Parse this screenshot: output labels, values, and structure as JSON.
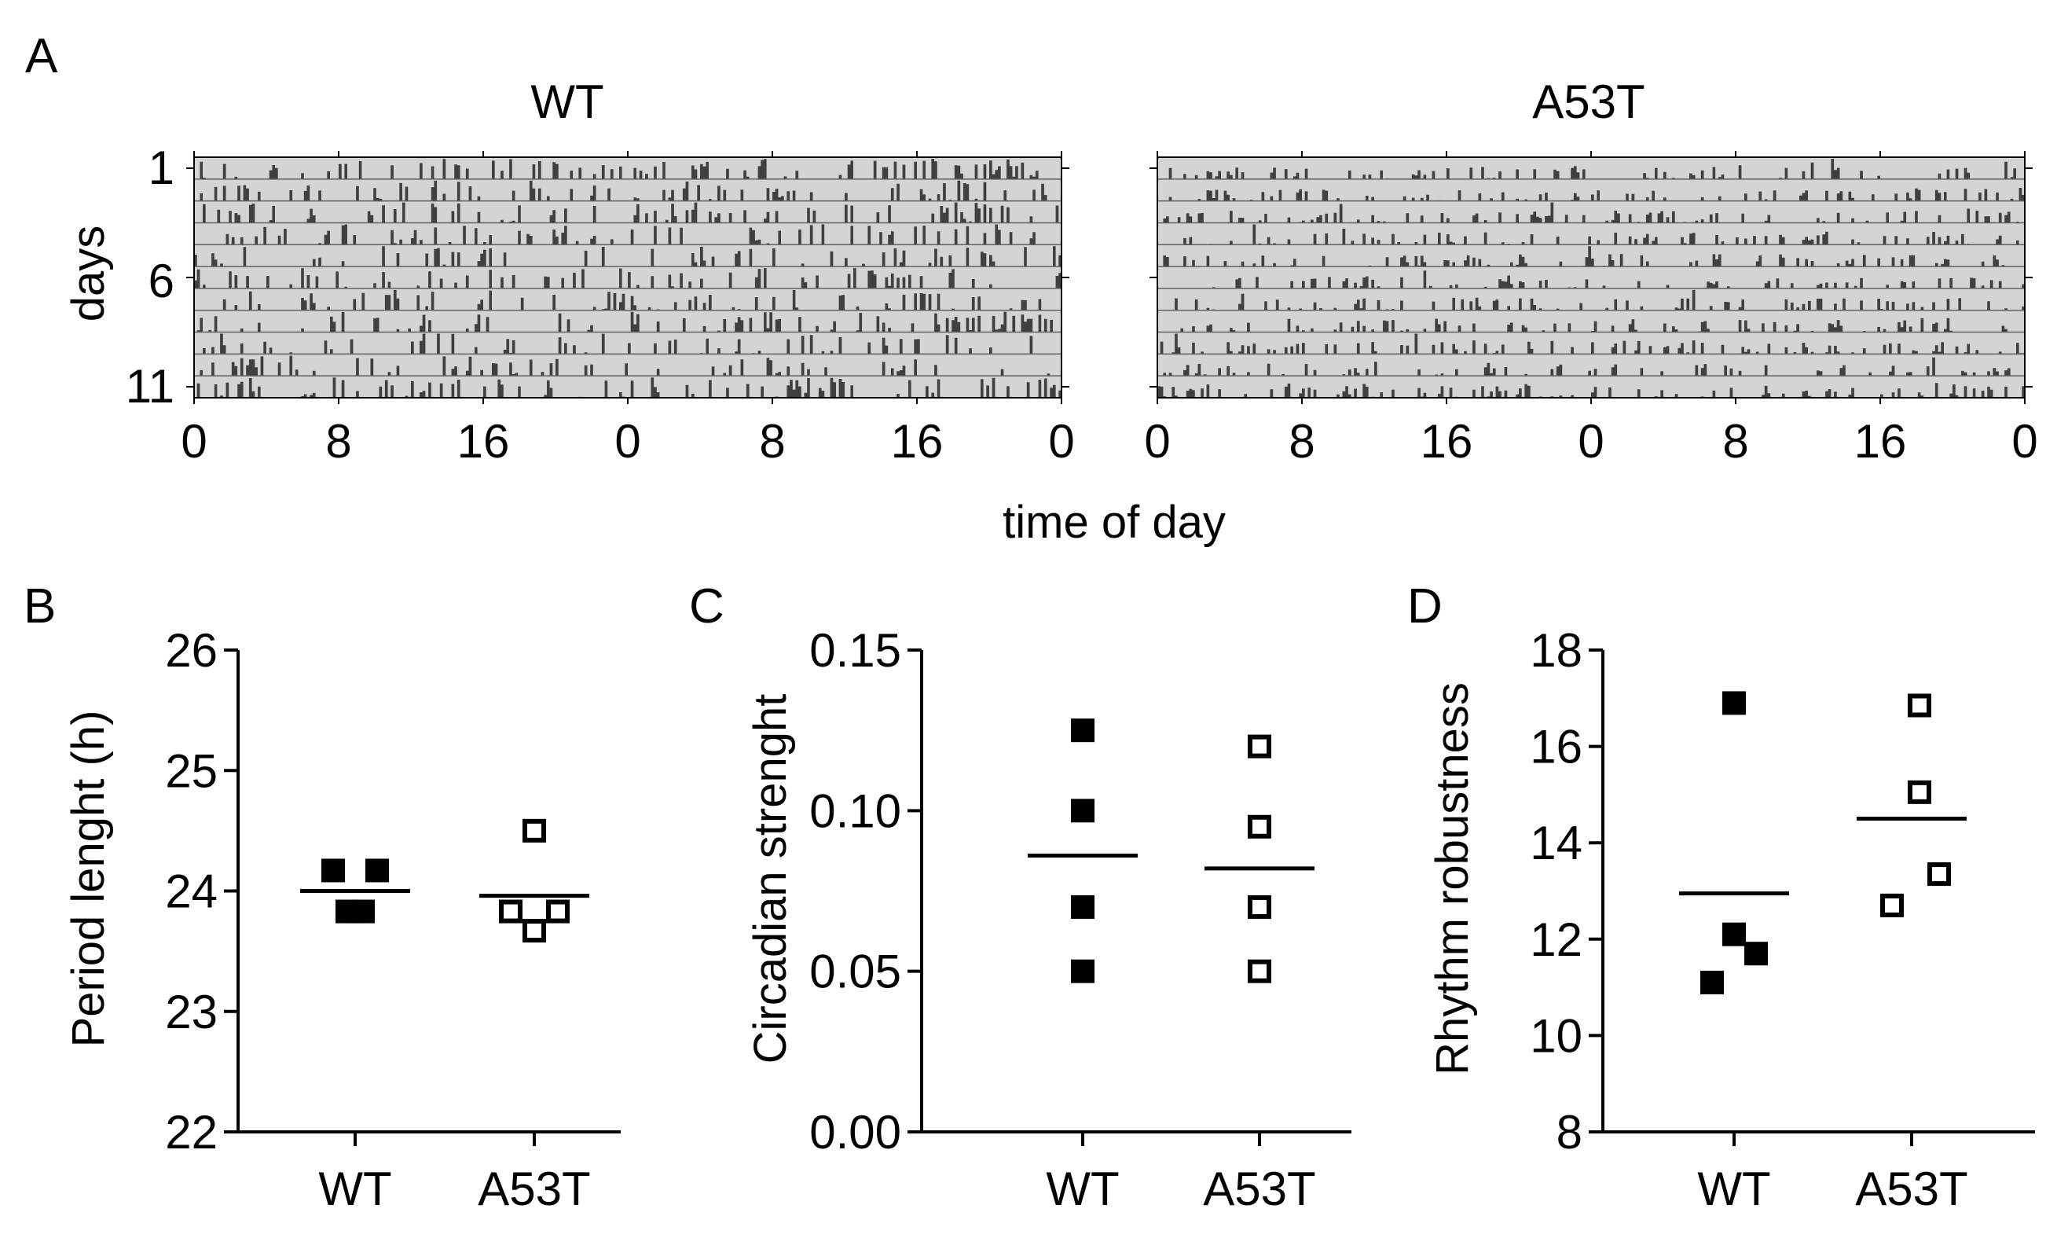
{
  "colors": {
    "axis": "#000000",
    "actogram_bg": "#d4d4d4",
    "activity": "#404040",
    "row_line": "#606060"
  },
  "panels": {
    "A": "A",
    "B": "B",
    "C": "C",
    "D": "D"
  },
  "actogram": {
    "type": "actogram",
    "xlabel": "time of day",
    "ylabel": "days",
    "day_ticks": [
      "1",
      "6",
      "11"
    ],
    "x_ticks": [
      "0",
      "8",
      "16",
      "0",
      "8",
      "16",
      "0"
    ],
    "days": 11,
    "hours": 48,
    "plots": [
      {
        "title": "WT",
        "seed": 7,
        "density": 0.55,
        "max_level": 1.0
      },
      {
        "title": "A53T",
        "seed": 23,
        "density": 0.62,
        "max_level": 0.6
      }
    ]
  },
  "chart_data": [
    {
      "type": "scatter",
      "panel": "B",
      "title": "",
      "xlabel": "",
      "ylabel": "Period lenght (h)",
      "ylim": [
        22,
        26
      ],
      "yticks": [
        "22",
        "23",
        "24",
        "25",
        "26"
      ],
      "categories": [
        "WT",
        "A53T"
      ],
      "series": [
        {
          "name": "WT",
          "filled": true,
          "points": [
            [
              -0.28,
              24.17
            ],
            [
              0.28,
              24.17
            ],
            [
              -0.1,
              23.83
            ],
            [
              0.1,
              23.83
            ]
          ],
          "mean": 24.0
        },
        {
          "name": "A53T",
          "filled": false,
          "points": [
            [
              0.0,
              24.5
            ],
            [
              -0.3,
              23.83
            ],
            [
              0.3,
              23.83
            ],
            [
              0.0,
              23.67
            ]
          ],
          "mean": 23.96
        }
      ]
    },
    {
      "type": "scatter",
      "panel": "C",
      "title": "",
      "xlabel": "",
      "ylabel": "Circadian strenght",
      "ylim": [
        0,
        0.15
      ],
      "yticks": [
        "0.00",
        "0.05",
        "0.10",
        "0.15"
      ],
      "categories": [
        "WT",
        "A53T"
      ],
      "series": [
        {
          "name": "WT",
          "filled": true,
          "points": [
            [
              0,
              0.125
            ],
            [
              0,
              0.1
            ],
            [
              0,
              0.07
            ],
            [
              0,
              0.05
            ]
          ],
          "mean": 0.086
        },
        {
          "name": "A53T",
          "filled": false,
          "points": [
            [
              0,
              0.12
            ],
            [
              0,
              0.095
            ],
            [
              0,
              0.07
            ],
            [
              0,
              0.05
            ]
          ],
          "mean": 0.082
        }
      ]
    },
    {
      "type": "scatter",
      "panel": "D",
      "title": "",
      "xlabel": "",
      "ylabel": "Rhythm robustness",
      "ylim": [
        8,
        18
      ],
      "yticks": [
        "8",
        "10",
        "12",
        "14",
        "16",
        "18"
      ],
      "categories": [
        "WT",
        "A53T"
      ],
      "series": [
        {
          "name": "WT",
          "filled": true,
          "points": [
            [
              0,
              16.9
            ],
            [
              0,
              12.1
            ],
            [
              0.28,
              11.7
            ],
            [
              -0.28,
              11.1
            ]
          ],
          "mean": 12.95
        },
        {
          "name": "A53T",
          "filled": false,
          "points": [
            [
              0.1,
              16.85
            ],
            [
              0.1,
              15.05
            ],
            [
              0.35,
              13.35
            ],
            [
              -0.25,
              12.7
            ]
          ],
          "mean": 14.5
        }
      ]
    }
  ]
}
